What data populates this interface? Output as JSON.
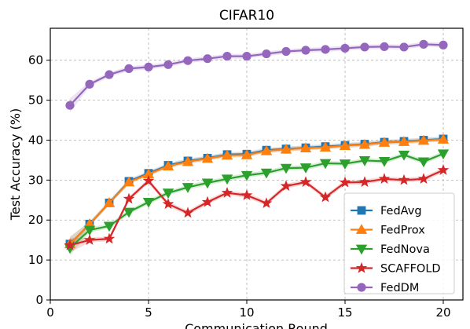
{
  "chart_data": {
    "type": "line",
    "title": "CIFAR10",
    "xlabel": "Communication Round",
    "ylabel": "Test Accuracy (%)",
    "xlim": [
      0,
      21
    ],
    "ylim": [
      0,
      68
    ],
    "x_ticks": [
      "0",
      "5",
      "10",
      "15",
      "20"
    ],
    "y_ticks": [
      "0",
      "10",
      "20",
      "30",
      "40",
      "50",
      "60"
    ],
    "grid": true,
    "legend_position": "lower-right",
    "x": [
      1,
      2,
      3,
      4,
      5,
      6,
      7,
      8,
      9,
      10,
      11,
      12,
      13,
      14,
      15,
      16,
      17,
      18,
      19,
      20
    ],
    "series": [
      {
        "name": "FedAvg",
        "color": "#1f77b4",
        "marker": "square",
        "values": [
          14.0,
          19.0,
          24.3,
          29.7,
          31.7,
          33.7,
          34.8,
          35.5,
          36.4,
          36.5,
          37.5,
          37.8,
          38.1,
          38.4,
          38.7,
          39.0,
          39.5,
          39.7,
          40.0,
          40.3
        ]
      },
      {
        "name": "FedProx",
        "color": "#ff7f0e",
        "marker": "triangle-up",
        "values": [
          14.0,
          19.0,
          24.3,
          29.5,
          31.5,
          33.5,
          34.6,
          35.4,
          36.2,
          36.3,
          37.3,
          37.7,
          38.0,
          38.2,
          38.6,
          38.9,
          39.4,
          39.6,
          39.9,
          40.2
        ]
      },
      {
        "name": "FedNova",
        "color": "#2ca02c",
        "marker": "triangle-down",
        "values": [
          13.0,
          17.5,
          18.5,
          22.0,
          24.5,
          26.8,
          28.2,
          29.3,
          30.3,
          31.2,
          31.8,
          33.0,
          33.1,
          34.2,
          34.1,
          34.9,
          34.7,
          36.3,
          34.6,
          36.6
        ]
      },
      {
        "name": "SCAFFOLD",
        "color": "#d62728",
        "marker": "star",
        "values": [
          13.7,
          15.0,
          15.3,
          25.3,
          29.8,
          24.0,
          21.8,
          24.5,
          26.8,
          26.2,
          24.2,
          28.5,
          29.5,
          25.7,
          29.4,
          29.5,
          30.3,
          30.0,
          30.3,
          32.5
        ]
      },
      {
        "name": "FedDM",
        "color": "#9467bd",
        "marker": "circle",
        "values": [
          48.7,
          54.0,
          56.4,
          57.9,
          58.3,
          58.9,
          59.9,
          60.4,
          61.0,
          61.0,
          61.6,
          62.2,
          62.5,
          62.7,
          63.0,
          63.3,
          63.4,
          63.3,
          64.0,
          63.8
        ]
      }
    ]
  }
}
